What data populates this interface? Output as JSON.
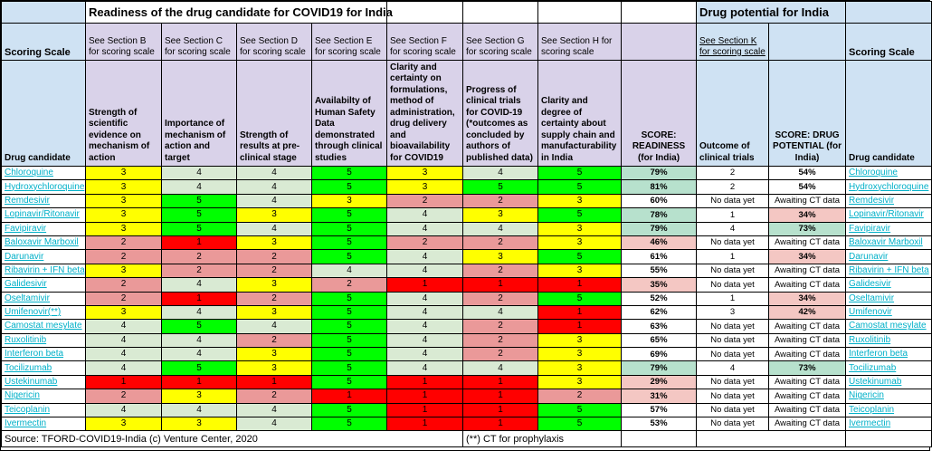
{
  "titles": {
    "readiness": "Readiness of the drug candidate for COVID19 for India",
    "potential": "Drug potential for India"
  },
  "scoring_scale_label": "Scoring Scale",
  "sections": [
    "See Section B for scoring scale",
    "See Section C for scoring scale",
    "See Section D for scoring scale",
    "See Section E for scoring scale",
    "See Section F for scoring scale",
    "See Section G for scoring scale",
    "See Section H for scoring scale"
  ],
  "section_k": "See Section K for scoring scale",
  "columns": {
    "drug": "Drug candidate",
    "readiness_headers": [
      "Strength of scientific evidence on mechanism of action",
      "Importance of mechanism of action and target",
      "Strength of results at pre-clinical stage",
      "Availabilty of Human Safety Data demonstrated through clinical studies",
      "Clarity and certainty on formulations, method of administration, drug delivery and bioavailability for COVID19",
      "Progress of clinical trials for COVID-19 (*outcomes as concluded by authors of published data)",
      "Clarity and degree of certainty about supply chain and manufacturability in India"
    ],
    "score_readiness": "SCORE: READINESS (for India)",
    "outcome": "Outcome of clinical trials",
    "score_potential": "SCORE: DRUG POTENTIAL (for India)",
    "drug_right": "Drug candidate"
  },
  "score_colors": {
    "1": "#ff0000",
    "2": "#ea9999",
    "3": "#ffff00",
    "4": "#d9ead3",
    "5": "#00ff00"
  },
  "tone_colors": {
    "good": "#b7e1cd",
    "bad": "#f4c7c3",
    "none": "#ffffff"
  },
  "accent_colors": {
    "header_blue": "#cfe2f3",
    "header_lavender": "#d9d2e9",
    "link_teal": "#00b0c8"
  },
  "drugs": [
    {
      "name": "Chloroquine",
      "scores": [
        3,
        4,
        4,
        5,
        3,
        4,
        5
      ],
      "readiness": "79%",
      "readiness_tone": "good",
      "outcome": "2",
      "potential": "54%",
      "potential_tone": "none",
      "right_name": "Chloroquine"
    },
    {
      "name": "Hydroxychloroquine",
      "scores": [
        3,
        4,
        4,
        5,
        3,
        5,
        5
      ],
      "readiness": "81%",
      "readiness_tone": "good",
      "outcome": "2",
      "potential": "54%",
      "potential_tone": "none",
      "right_name": "Hydroxychloroquine"
    },
    {
      "name": "Remdesivir",
      "scores": [
        3,
        5,
        4,
        3,
        2,
        2,
        3
      ],
      "readiness": "60%",
      "readiness_tone": "none",
      "outcome": "No data yet",
      "potential": "Awaiting CT data",
      "potential_tone": "none",
      "right_name": "Remdesivir"
    },
    {
      "name": "Lopinavir/Ritonavir",
      "scores": [
        3,
        5,
        3,
        5,
        4,
        3,
        5
      ],
      "readiness": "78%",
      "readiness_tone": "good",
      "outcome": "1",
      "potential": "34%",
      "potential_tone": "bad",
      "right_name": "Lopinavir/Ritonavir"
    },
    {
      "name": "Favipiravir",
      "scores": [
        3,
        5,
        4,
        5,
        4,
        4,
        3
      ],
      "readiness": "79%",
      "readiness_tone": "good",
      "outcome": "4",
      "potential": "73%",
      "potential_tone": "good",
      "right_name": "Favipiravir"
    },
    {
      "name": "Baloxavir Marboxil",
      "scores": [
        2,
        1,
        3,
        5,
        2,
        2,
        3
      ],
      "readiness": "46%",
      "readiness_tone": "bad",
      "outcome": "No data yet",
      "potential": "Awaiting CT data",
      "potential_tone": "none",
      "right_name": "Baloxavir Marboxil"
    },
    {
      "name": "Darunavir",
      "scores": [
        2,
        2,
        2,
        5,
        4,
        3,
        5
      ],
      "readiness": "61%",
      "readiness_tone": "none",
      "outcome": "1",
      "potential": "34%",
      "potential_tone": "bad",
      "right_name": "Darunavir"
    },
    {
      "name": "Ribavirin + IFN beta",
      "scores": [
        3,
        2,
        2,
        4,
        4,
        2,
        3
      ],
      "readiness": "55%",
      "readiness_tone": "none",
      "outcome": "No data yet",
      "potential": "Awaiting CT data",
      "potential_tone": "none",
      "right_name": "Ribavirin + IFN beta"
    },
    {
      "name": "Galidesivir",
      "scores": [
        2,
        4,
        3,
        2,
        1,
        1,
        1
      ],
      "readiness": "35%",
      "readiness_tone": "bad",
      "outcome": "No data yet",
      "potential": "Awaiting CT data",
      "potential_tone": "none",
      "right_name": "Galidesivir"
    },
    {
      "name": "Oseltamivir",
      "scores": [
        2,
        1,
        2,
        5,
        4,
        2,
        5
      ],
      "readiness": "52%",
      "readiness_tone": "none",
      "outcome": "1",
      "potential": "34%",
      "potential_tone": "bad",
      "right_name": "Oseltamivir"
    },
    {
      "name": "Umifenovir(**)",
      "scores": [
        3,
        4,
        3,
        5,
        4,
        4,
        1
      ],
      "readiness": "62%",
      "readiness_tone": "none",
      "outcome": "3",
      "potential": "42%",
      "potential_tone": "bad",
      "right_name": "Umifenovir"
    },
    {
      "name": "Camostat mesylate",
      "scores": [
        4,
        5,
        4,
        5,
        4,
        2,
        1
      ],
      "readiness": "63%",
      "readiness_tone": "none",
      "outcome": "No data yet",
      "potential": "Awaiting CT data",
      "potential_tone": "none",
      "right_name": "Camostat mesylate"
    },
    {
      "name": "Ruxolitinib",
      "scores": [
        4,
        4,
        2,
        5,
        4,
        2,
        3
      ],
      "readiness": "65%",
      "readiness_tone": "none",
      "outcome": "No data yet",
      "potential": "Awaiting CT data",
      "potential_tone": "none",
      "right_name": "Ruxolitinib"
    },
    {
      "name": "Interferon beta",
      "scores": [
        4,
        4,
        3,
        5,
        4,
        2,
        3
      ],
      "readiness": "69%",
      "readiness_tone": "none",
      "outcome": "No data yet",
      "potential": "Awaiting CT data",
      "potential_tone": "none",
      "right_name": "Interferon beta"
    },
    {
      "name": "Tocilizumab",
      "scores": [
        4,
        5,
        3,
        5,
        4,
        4,
        3
      ],
      "readiness": "79%",
      "readiness_tone": "good",
      "outcome": "4",
      "potential": "73%",
      "potential_tone": "good",
      "right_name": "Tocilizumab"
    },
    {
      "name": "Ustekinumab",
      "scores": [
        1,
        1,
        1,
        5,
        1,
        1,
        3
      ],
      "readiness": "29%",
      "readiness_tone": "bad",
      "outcome": "No data yet",
      "potential": "Awaiting CT data",
      "potential_tone": "none",
      "right_name": "Ustekinumab"
    },
    {
      "name": "Nigericin",
      "scores": [
        2,
        3,
        2,
        1,
        1,
        1,
        2
      ],
      "readiness": "31%",
      "readiness_tone": "bad",
      "outcome": "No data yet",
      "potential": "Awaiting CT data",
      "potential_tone": "none",
      "right_name": "Nigericin"
    },
    {
      "name": "Teicoplanin",
      "scores": [
        4,
        4,
        4,
        5,
        1,
        1,
        5
      ],
      "readiness": "57%",
      "readiness_tone": "none",
      "outcome": "No data yet",
      "potential": "Awaiting CT data",
      "potential_tone": "none",
      "right_name": "Teicoplanin"
    },
    {
      "name": "Ivermectin",
      "scores": [
        3,
        3,
        4,
        5,
        1,
        1,
        5
      ],
      "readiness": "53%",
      "readiness_tone": "none",
      "outcome": "No data yet",
      "potential": "Awaiting CT data",
      "potential_tone": "none",
      "right_name": "Ivermectin"
    }
  ],
  "footer": {
    "source": "Source: TFORD-COVID19-India (c) Venture Center, 2020",
    "note": "(**) CT for prophylaxis"
  }
}
